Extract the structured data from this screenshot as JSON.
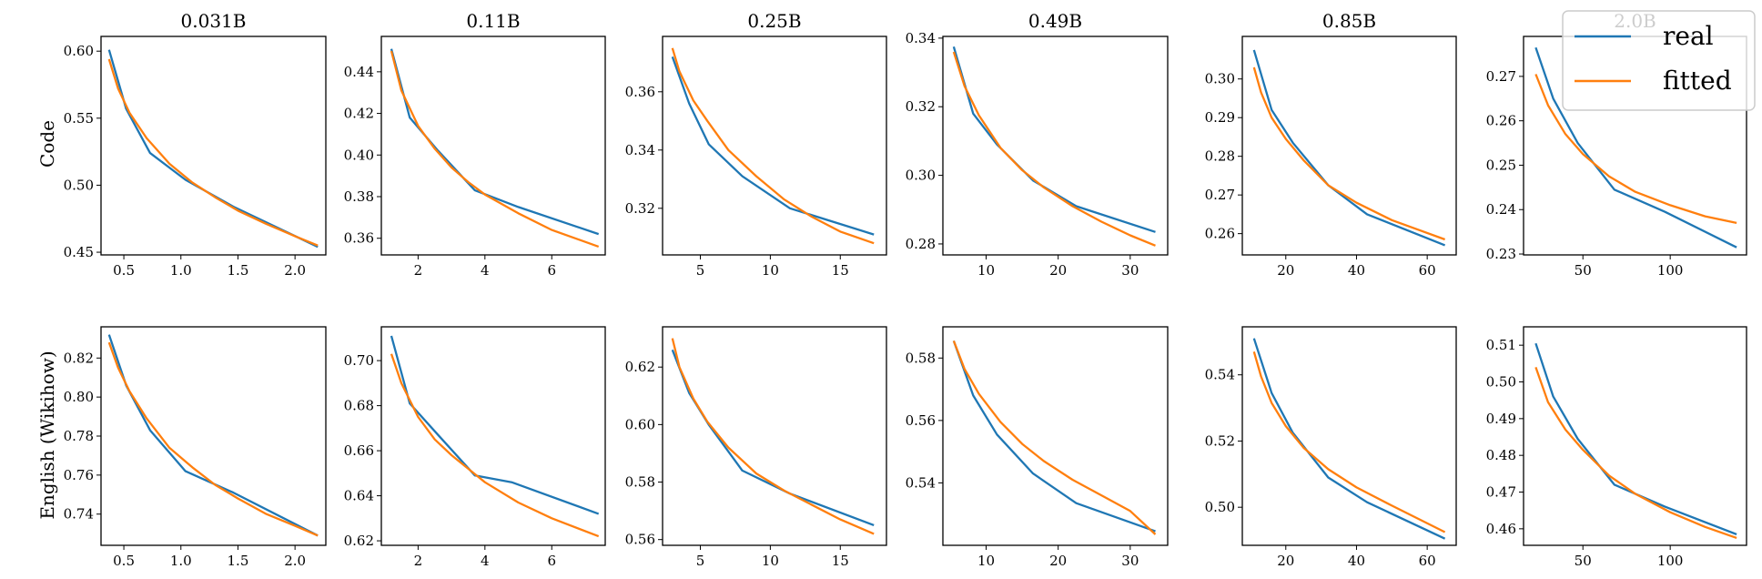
{
  "colors": {
    "real": "#1f77b4",
    "fitted": "#ff7f0e",
    "axes": "#000000",
    "legend_border": "#cccccc"
  },
  "legend": {
    "entries": [
      {
        "label": "real",
        "series": "real"
      },
      {
        "label": "fitted",
        "series": "fitted"
      }
    ],
    "placement": "top-right"
  },
  "row_labels": [
    "Code",
    "English (Wikihow)"
  ],
  "chart_data": [
    {
      "type": "line",
      "row": "Code",
      "title": "0.031B",
      "xticks": [
        0.5,
        1.0,
        1.5,
        2.0
      ],
      "yticks": [
        0.45,
        0.5,
        0.55,
        0.6
      ],
      "xlim": [
        0.3,
        2.27
      ],
      "ylim": [
        0.448,
        0.611
      ],
      "series": [
        {
          "name": "real",
          "x": [
            0.37,
            0.52,
            0.73,
            1.04,
            1.46,
            2.2
          ],
          "y": [
            0.601,
            0.557,
            0.524,
            0.504,
            0.484,
            0.454
          ]
        },
        {
          "name": "fitted",
          "x": [
            0.37,
            0.45,
            0.55,
            0.7,
            0.9,
            1.1,
            1.3,
            1.5,
            1.75,
            2.0,
            2.2
          ],
          "y": [
            0.594,
            0.572,
            0.554,
            0.535,
            0.516,
            0.502,
            0.491,
            0.481,
            0.471,
            0.462,
            0.455
          ]
        }
      ]
    },
    {
      "type": "line",
      "row": "Code",
      "title": "0.11B",
      "xticks": [
        2,
        4,
        6
      ],
      "yticks": [
        0.36,
        0.38,
        0.4,
        0.42,
        0.44
      ],
      "xlim": [
        0.9,
        7.6
      ],
      "ylim": [
        0.352,
        0.457
      ],
      "series": [
        {
          "name": "real",
          "x": [
            1.2,
            1.75,
            2.6,
            3.7,
            5.0,
            7.4
          ],
          "y": [
            0.451,
            0.418,
            0.402,
            0.383,
            0.375,
            0.362
          ]
        },
        {
          "name": "fitted",
          "x": [
            1.2,
            1.5,
            2.0,
            2.5,
            3.0,
            3.5,
            4.0,
            5.0,
            6.0,
            7.4
          ],
          "y": [
            0.45,
            0.431,
            0.414,
            0.403,
            0.394,
            0.387,
            0.381,
            0.372,
            0.364,
            0.356
          ]
        }
      ]
    },
    {
      "type": "line",
      "row": "Code",
      "title": "0.25B",
      "xticks": [
        5,
        10,
        15
      ],
      "yticks": [
        0.32,
        0.34,
        0.36
      ],
      "xlim": [
        2.3,
        18.3
      ],
      "ylim": [
        0.304,
        0.379
      ],
      "series": [
        {
          "name": "real",
          "x": [
            3.0,
            4.2,
            5.6,
            8.0,
            11.4,
            17.4
          ],
          "y": [
            0.372,
            0.356,
            0.342,
            0.331,
            0.32,
            0.311
          ]
        },
        {
          "name": "fitted",
          "x": [
            3.0,
            3.5,
            4.5,
            5.5,
            7.0,
            9.0,
            11.0,
            13.0,
            15.0,
            17.4
          ],
          "y": [
            0.375,
            0.367,
            0.357,
            0.35,
            0.34,
            0.331,
            0.323,
            0.317,
            0.312,
            0.308
          ]
        }
      ]
    },
    {
      "type": "line",
      "row": "Code",
      "title": "0.49B",
      "xticks": [
        10,
        20,
        30
      ],
      "yticks": [
        0.28,
        0.3,
        0.32,
        0.34
      ],
      "xlim": [
        4.0,
        35.2
      ],
      "ylim": [
        0.2768,
        0.3405
      ],
      "series": [
        {
          "name": "real",
          "x": [
            5.5,
            8.2,
            11.5,
            16.5,
            22.5,
            33.5
          ],
          "y": [
            0.3375,
            0.318,
            0.309,
            0.2985,
            0.291,
            0.2835
          ]
        },
        {
          "name": "fitted",
          "x": [
            5.5,
            7.0,
            9.0,
            12.0,
            15.0,
            18.0,
            22.0,
            26.0,
            30.0,
            33.5
          ],
          "y": [
            0.336,
            0.326,
            0.3175,
            0.308,
            0.3015,
            0.2965,
            0.291,
            0.2865,
            0.2825,
            0.2795
          ]
        }
      ]
    },
    {
      "type": "line",
      "row": "Code",
      "title": "0.85B",
      "xticks": [
        20,
        40,
        60
      ],
      "yticks": [
        0.26,
        0.27,
        0.28,
        0.29,
        0.3
      ],
      "xlim": [
        7.7,
        68.2
      ],
      "ylim": [
        0.2545,
        0.311
      ],
      "series": [
        {
          "name": "real",
          "x": [
            11.0,
            16.0,
            22.0,
            32.0,
            43.0,
            65.0
          ],
          "y": [
            0.3075,
            0.292,
            0.2835,
            0.2725,
            0.265,
            0.257
          ]
        },
        {
          "name": "fitted",
          "x": [
            11.0,
            13.0,
            16.0,
            20.0,
            25.0,
            32.0,
            40.0,
            50.0,
            65.0
          ],
          "y": [
            0.303,
            0.2965,
            0.29,
            0.2845,
            0.279,
            0.2725,
            0.268,
            0.2635,
            0.2585
          ]
        }
      ]
    },
    {
      "type": "line",
      "row": "Code",
      "title": "2.0B",
      "xticks": [
        50,
        100
      ],
      "yticks": [
        0.23,
        0.24,
        0.25,
        0.26,
        0.27
      ],
      "xlim": [
        16.0,
        143.7
      ],
      "ylim": [
        0.2298,
        0.279
      ],
      "series": [
        {
          "name": "real",
          "x": [
            23.0,
            33.0,
            47.0,
            68.0,
            97.0,
            138.0
          ],
          "y": [
            0.2765,
            0.265,
            0.255,
            0.2445,
            0.2395,
            0.2315
          ]
        },
        {
          "name": "fitted",
          "x": [
            23.0,
            30.0,
            40.0,
            50.0,
            65.0,
            80.0,
            100.0,
            120.0,
            138.0
          ],
          "y": [
            0.2705,
            0.2635,
            0.257,
            0.2525,
            0.2475,
            0.244,
            0.241,
            0.2385,
            0.237
          ]
        }
      ]
    },
    {
      "type": "line",
      "row": "English (Wikihow)",
      "title": "",
      "xticks": [
        0.5,
        1.0,
        1.5,
        2.0
      ],
      "yticks": [
        0.74,
        0.76,
        0.78,
        0.8,
        0.82
      ],
      "xlim": [
        0.3,
        2.27
      ],
      "ylim": [
        0.724,
        0.836
      ],
      "series": [
        {
          "name": "real",
          "x": [
            0.37,
            0.52,
            0.73,
            1.04,
            1.46,
            2.2
          ],
          "y": [
            0.832,
            0.806,
            0.783,
            0.762,
            0.751,
            0.729
          ]
        },
        {
          "name": "fitted",
          "x": [
            0.37,
            0.45,
            0.55,
            0.7,
            0.9,
            1.1,
            1.3,
            1.5,
            1.75,
            2.0,
            2.2
          ],
          "y": [
            0.828,
            0.815,
            0.803,
            0.789,
            0.774,
            0.764,
            0.755,
            0.748,
            0.74,
            0.734,
            0.729
          ]
        }
      ]
    },
    {
      "type": "line",
      "row": "English (Wikihow)",
      "title": "",
      "xticks": [
        2,
        4,
        6
      ],
      "yticks": [
        0.62,
        0.64,
        0.66,
        0.68,
        0.7
      ],
      "xlim": [
        0.9,
        7.6
      ],
      "ylim": [
        0.618,
        0.715
      ],
      "series": [
        {
          "name": "real",
          "x": [
            1.2,
            1.75,
            2.6,
            3.7,
            4.8,
            7.4
          ],
          "y": [
            0.711,
            0.681,
            0.667,
            0.649,
            0.646,
            0.632
          ]
        },
        {
          "name": "fitted",
          "x": [
            1.2,
            1.5,
            2.0,
            2.5,
            3.0,
            3.5,
            4.0,
            5.0,
            6.0,
            7.4
          ],
          "y": [
            0.703,
            0.69,
            0.675,
            0.665,
            0.658,
            0.652,
            0.646,
            0.637,
            0.63,
            0.622
          ]
        }
      ]
    },
    {
      "type": "line",
      "row": "English (Wikihow)",
      "title": "",
      "xticks": [
        5,
        10,
        15
      ],
      "yticks": [
        0.56,
        0.58,
        0.6,
        0.62
      ],
      "xlim": [
        2.3,
        18.3
      ],
      "ylim": [
        0.558,
        0.634
      ],
      "series": [
        {
          "name": "real",
          "x": [
            3.0,
            4.2,
            5.6,
            8.0,
            11.4,
            17.4
          ],
          "y": [
            0.626,
            0.611,
            0.6,
            0.584,
            0.576,
            0.565
          ]
        },
        {
          "name": "fitted",
          "x": [
            3.0,
            3.5,
            4.5,
            5.5,
            7.0,
            9.0,
            11.0,
            13.0,
            15.0,
            17.4
          ],
          "y": [
            0.63,
            0.62,
            0.609,
            0.601,
            0.592,
            0.583,
            0.577,
            0.572,
            0.567,
            0.562
          ]
        }
      ]
    },
    {
      "type": "line",
      "row": "English (Wikihow)",
      "title": "",
      "xticks": [
        10,
        20,
        30
      ],
      "yticks": [
        0.54,
        0.56,
        0.58
      ],
      "xlim": [
        4.0,
        35.2
      ],
      "ylim": [
        0.52,
        0.59
      ],
      "series": [
        {
          "name": "real",
          "x": [
            5.5,
            8.2,
            11.5,
            16.5,
            22.5,
            33.5
          ],
          "y": [
            0.5855,
            0.568,
            0.5555,
            0.543,
            0.5335,
            0.5245
          ]
        },
        {
          "name": "fitted",
          "x": [
            5.5,
            7.0,
            9.0,
            12.0,
            15.0,
            18.0,
            22.0,
            26.0,
            30.0,
            33.5
          ],
          "y": [
            0.5855,
            0.5765,
            0.5685,
            0.5595,
            0.5525,
            0.547,
            0.541,
            0.536,
            0.531,
            0.5235
          ]
        }
      ]
    },
    {
      "type": "line",
      "row": "English (Wikihow)",
      "title": "",
      "xticks": [
        20,
        40,
        60
      ],
      "yticks": [
        0.5,
        0.52,
        0.54
      ],
      "xlim": [
        7.7,
        68.2
      ],
      "ylim": [
        0.4885,
        0.5545
      ],
      "series": [
        {
          "name": "real",
          "x": [
            11.0,
            16.0,
            22.0,
            32.0,
            43.0,
            65.0
          ],
          "y": [
            0.551,
            0.5345,
            0.5225,
            0.509,
            0.5015,
            0.4905
          ]
        },
        {
          "name": "fitted",
          "x": [
            11.0,
            13.0,
            16.0,
            20.0,
            25.0,
            32.0,
            40.0,
            50.0,
            65.0
          ],
          "y": [
            0.547,
            0.5395,
            0.5315,
            0.5245,
            0.518,
            0.5115,
            0.506,
            0.5005,
            0.4925
          ]
        }
      ]
    },
    {
      "type": "line",
      "row": "English (Wikihow)",
      "title": "",
      "xticks": [
        50,
        100
      ],
      "yticks": [
        0.46,
        0.47,
        0.48,
        0.49,
        0.5,
        0.51
      ],
      "xlim": [
        16.0,
        143.7
      ],
      "ylim": [
        0.4555,
        0.515
      ],
      "series": [
        {
          "name": "real",
          "x": [
            23.0,
            33.0,
            47.0,
            68.0,
            97.0,
            138.0
          ],
          "y": [
            0.5105,
            0.496,
            0.4845,
            0.472,
            0.466,
            0.4585
          ]
        },
        {
          "name": "fitted",
          "x": [
            23.0,
            30.0,
            40.0,
            50.0,
            65.0,
            80.0,
            100.0,
            120.0,
            138.0
          ],
          "y": [
            0.504,
            0.4945,
            0.487,
            0.4815,
            0.4745,
            0.4695,
            0.4645,
            0.4605,
            0.4575
          ]
        }
      ]
    }
  ]
}
